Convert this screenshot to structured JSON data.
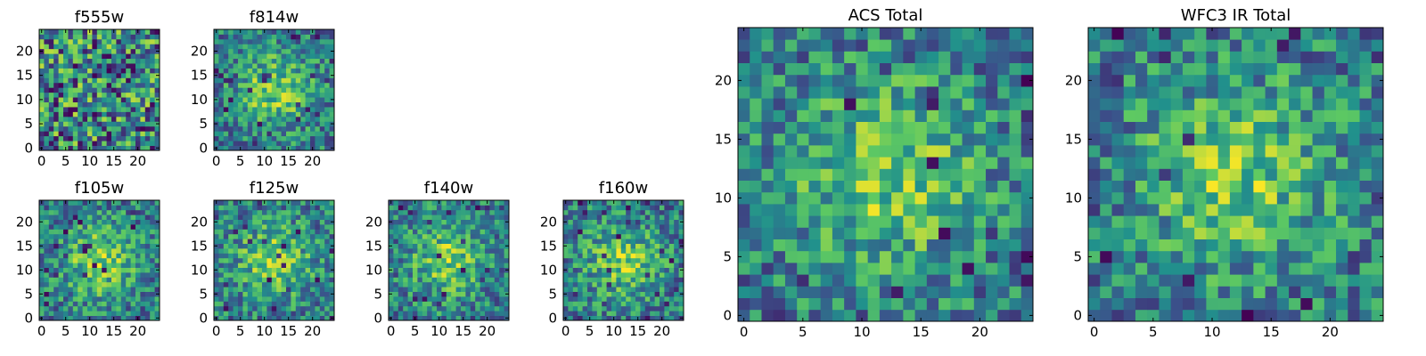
{
  "chart_data": [
    {
      "type": "heatmap",
      "title": "f555w",
      "pixels": 25,
      "xlim": [
        0,
        24
      ],
      "ylim": [
        0,
        24
      ],
      "xticks": [
        0,
        5,
        10,
        15,
        20
      ],
      "yticks": [
        0,
        5,
        10,
        15,
        20
      ],
      "pattern": "noisy",
      "seed": 11
    },
    {
      "type": "heatmap",
      "title": "f814w",
      "pixels": 25,
      "xlim": [
        0,
        24
      ],
      "ylim": [
        0,
        24
      ],
      "xticks": [
        0,
        5,
        10,
        15,
        20
      ],
      "yticks": [
        0,
        5,
        10,
        15,
        20
      ],
      "pattern": "peaked",
      "seed": 23
    },
    {
      "type": "heatmap",
      "title": "f105w",
      "pixels": 25,
      "xlim": [
        0,
        24
      ],
      "ylim": [
        0,
        24
      ],
      "xticks": [
        0,
        5,
        10,
        15,
        20
      ],
      "yticks": [
        0,
        5,
        10,
        15,
        20
      ],
      "pattern": "peaked",
      "seed": 37
    },
    {
      "type": "heatmap",
      "title": "f125w",
      "pixels": 25,
      "xlim": [
        0,
        24
      ],
      "ylim": [
        0,
        24
      ],
      "xticks": [
        0,
        5,
        10,
        15,
        20
      ],
      "yticks": [
        0,
        5,
        10,
        15,
        20
      ],
      "pattern": "peaked",
      "seed": 41
    },
    {
      "type": "heatmap",
      "title": "f140w",
      "pixels": 25,
      "xlim": [
        0,
        24
      ],
      "ylim": [
        0,
        24
      ],
      "xticks": [
        0,
        5,
        10,
        15,
        20
      ],
      "yticks": [
        0,
        5,
        10,
        15,
        20
      ],
      "pattern": "peaked",
      "seed": 53
    },
    {
      "type": "heatmap",
      "title": "f160w",
      "pixels": 25,
      "xlim": [
        0,
        24
      ],
      "ylim": [
        0,
        24
      ],
      "xticks": [
        0,
        5,
        10,
        15,
        20
      ],
      "yticks": [
        0,
        5,
        10,
        15,
        20
      ],
      "pattern": "peaked",
      "seed": 67
    },
    {
      "type": "heatmap",
      "title": "ACS Total",
      "pixels": 25,
      "xlim": [
        0,
        24
      ],
      "ylim": [
        0,
        24
      ],
      "xticks": [
        0,
        5,
        10,
        15,
        20
      ],
      "yticks": [
        0,
        5,
        10,
        15,
        20
      ],
      "pattern": "peaked",
      "seed": 79
    },
    {
      "type": "heatmap",
      "title": "WFC3 IR Total",
      "pixels": 25,
      "xlim": [
        0,
        24
      ],
      "ylim": [
        0,
        24
      ],
      "xticks": [
        0,
        5,
        10,
        15,
        20
      ],
      "yticks": [
        0,
        5,
        10,
        15,
        20
      ],
      "pattern": "peaked",
      "seed": 97
    }
  ],
  "colormap": [
    "#440154",
    "#3b528b",
    "#21918c",
    "#5ec962",
    "#fde725"
  ]
}
